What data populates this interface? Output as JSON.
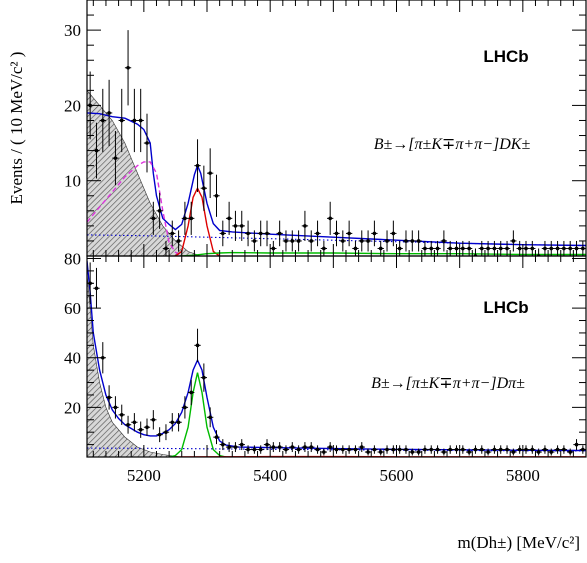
{
  "chart_data": [
    {
      "type": "scatter",
      "panel": "top",
      "experiment_label": "LHCb",
      "decay_label": "B±→[π±K∓π+π−]DK±",
      "ylabel": "Events / ( 10 MeV/c² )",
      "xlabel": "",
      "xlim": [
        5110,
        5900
      ],
      "ylim": [
        0,
        34
      ],
      "y_ticks": [
        10,
        20,
        30
      ],
      "x_ticks": [
        5200,
        5400,
        5600,
        5800
      ],
      "legend": "none",
      "grid": false,
      "data_points": {
        "x": [
          5115,
          5125,
          5135,
          5145,
          5155,
          5165,
          5175,
          5185,
          5195,
          5205,
          5215,
          5225,
          5235,
          5245,
          5255,
          5265,
          5275,
          5285,
          5295,
          5305,
          5315,
          5325,
          5335,
          5345,
          5355,
          5365,
          5375,
          5385,
          5395,
          5405,
          5415,
          5425,
          5435,
          5445,
          5455,
          5465,
          5475,
          5485,
          5495,
          5505,
          5515,
          5525,
          5535,
          5545,
          5555,
          5565,
          5575,
          5585,
          5595,
          5605,
          5615,
          5625,
          5635,
          5645,
          5655,
          5665,
          5675,
          5685,
          5695,
          5705,
          5715,
          5725,
          5735,
          5745,
          5755,
          5765,
          5775,
          5785,
          5795,
          5805,
          5815,
          5825,
          5835,
          5845,
          5855,
          5865,
          5875,
          5885,
          5895
        ],
        "y": [
          20,
          14,
          18,
          19,
          13,
          18,
          25,
          18,
          18,
          15,
          5,
          6,
          1,
          3,
          2,
          5,
          5,
          12,
          9,
          11,
          8,
          3,
          5,
          4,
          4,
          3,
          2,
          3,
          3,
          1,
          3,
          2,
          2,
          2,
          4,
          2,
          3,
          1,
          5,
          3,
          2,
          3,
          1,
          2,
          2,
          3,
          1,
          2,
          3,
          1,
          2,
          2,
          2,
          1,
          1,
          1,
          2,
          1,
          1,
          1,
          1,
          0,
          1,
          1,
          1,
          1,
          1,
          2,
          1,
          1,
          1,
          0,
          1,
          1,
          1,
          1,
          1,
          1,
          1
        ],
        "yerr": [
          4.5,
          3.7,
          4.2,
          4.4,
          3.6,
          4.2,
          5.0,
          4.2,
          4.2,
          3.9,
          2.2,
          2.4,
          1.0,
          1.7,
          1.4,
          2.2,
          2.2,
          3.5,
          3.0,
          3.3,
          2.8,
          1.7,
          2.2,
          2.0,
          2.0,
          1.7,
          1.4,
          1.7,
          1.7,
          1.0,
          1.7,
          1.4,
          1.4,
          1.4,
          2.0,
          1.4,
          1.7,
          1.0,
          2.2,
          1.7,
          1.4,
          1.7,
          1.0,
          1.4,
          1.4,
          1.7,
          1.0,
          1.4,
          1.7,
          1.0,
          1.4,
          1.4,
          1.4,
          1.0,
          1.0,
          1.0,
          1.4,
          1.0,
          1.0,
          1.0,
          1.0,
          1.0,
          1.0,
          1.0,
          1.0,
          1.0,
          1.0,
          1.4,
          1.0,
          1.0,
          1.0,
          1.0,
          1.0,
          1.0,
          1.0,
          1.0,
          1.0,
          1.0,
          1.0
        ]
      },
      "series": [
        {
          "color": "#0000cc",
          "style": "solid",
          "x": [
            5110,
            5130,
            5150,
            5170,
            5190,
            5200,
            5210,
            5215,
            5220,
            5230,
            5240,
            5250,
            5260,
            5270,
            5280,
            5285,
            5290,
            5300,
            5310,
            5320,
            5340,
            5400,
            5500,
            5600,
            5700,
            5800,
            5900
          ],
          "values": [
            19,
            18.9,
            18.5,
            18.3,
            17.5,
            16.8,
            15,
            11,
            8,
            5,
            4.2,
            3.5,
            4.2,
            7,
            10.8,
            12,
            11,
            7,
            4.3,
            3.4,
            3.2,
            2.9,
            2.5,
            2.1,
            1.7,
            1.5,
            1.4
          ]
        },
        {
          "color": "#dd33dd",
          "style": "dashed",
          "x": [
            5110,
            5130,
            5150,
            5170,
            5190,
            5200,
            5210,
            5220,
            5230,
            5240,
            5250,
            5260
          ],
          "values": [
            4.5,
            6.5,
            8.5,
            10.5,
            12,
            12.5,
            12.5,
            11,
            6,
            1.8,
            0.5,
            0
          ]
        },
        {
          "color": "#dd0000",
          "style": "solid",
          "x": [
            5250,
            5260,
            5270,
            5278,
            5285,
            5292,
            5300,
            5310,
            5320
          ],
          "values": [
            0,
            0.6,
            4,
            7.8,
            9,
            7.8,
            4,
            0.6,
            0
          ]
        },
        {
          "color": "#00bb00",
          "style": "solid",
          "x": [
            5260,
            5280,
            5300,
            5320,
            5340,
            5400,
            5500,
            5600,
            5700,
            5800,
            5900
          ],
          "values": [
            0,
            0.1,
            0.3,
            0.4,
            0.45,
            0.4,
            0.4,
            0.3,
            0.3,
            0.2,
            0.2
          ]
        },
        {
          "color": "#0000cc",
          "style": "dotted",
          "x": [
            5110,
            5200,
            5300,
            5400,
            5500,
            5600,
            5700,
            5800,
            5900
          ],
          "values": [
            2.8,
            2.7,
            2.5,
            2.3,
            2.1,
            1.9,
            1.7,
            1.5,
            1.4
          ]
        },
        {
          "color": "#888888",
          "style": "hatched-area",
          "x": [
            5110,
            5130,
            5150,
            5170,
            5190,
            5210,
            5230,
            5250,
            5270,
            5290
          ],
          "values": [
            22,
            20,
            18,
            15,
            11,
            7,
            4,
            2,
            0.6,
            0
          ]
        }
      ]
    },
    {
      "type": "scatter",
      "panel": "bottom",
      "experiment_label": "LHCb",
      "decay_label": "B±→[π±K∓π+π−]Dπ±",
      "ylabel": "",
      "xlabel": "m(Dh±) [MeV/c²]",
      "xlim": [
        5110,
        5900
      ],
      "ylim": [
        0,
        81
      ],
      "y_ticks": [
        20,
        40,
        60,
        80
      ],
      "x_ticks": [
        5200,
        5400,
        5600,
        5800
      ],
      "legend": "none",
      "grid": false,
      "data_points": {
        "x": [
          5115,
          5125,
          5135,
          5145,
          5155,
          5165,
          5175,
          5185,
          5195,
          5205,
          5215,
          5225,
          5235,
          5245,
          5255,
          5265,
          5275,
          5285,
          5295,
          5305,
          5315,
          5325,
          5335,
          5345,
          5355,
          5365,
          5375,
          5385,
          5395,
          5405,
          5415,
          5425,
          5435,
          5445,
          5455,
          5465,
          5475,
          5485,
          5495,
          5505,
          5515,
          5525,
          5535,
          5545,
          5555,
          5565,
          5575,
          5585,
          5595,
          5605,
          5615,
          5625,
          5635,
          5645,
          5655,
          5665,
          5675,
          5685,
          5695,
          5705,
          5715,
          5725,
          5735,
          5745,
          5755,
          5765,
          5775,
          5785,
          5795,
          5805,
          5815,
          5825,
          5835,
          5845,
          5855,
          5865,
          5875,
          5885,
          5895
        ],
        "y": [
          70,
          68,
          40,
          24,
          20,
          17,
          13,
          14,
          11,
          12,
          15,
          9,
          10,
          14,
          14,
          20,
          26,
          45,
          32,
          16,
          8,
          5,
          4,
          4,
          5,
          3,
          3,
          3,
          5,
          4,
          4,
          3,
          4,
          3,
          4,
          4,
          3,
          2,
          4,
          3,
          3,
          3,
          3,
          4,
          2,
          3,
          2,
          3,
          3,
          3,
          3,
          2,
          2,
          3,
          3,
          3,
          2,
          3,
          3,
          3,
          2,
          3,
          3,
          2,
          3,
          3,
          3,
          2,
          3,
          3,
          3,
          2,
          3,
          2,
          3,
          3,
          2,
          5,
          3
        ],
        "yerr": [
          8.4,
          8.2,
          6.3,
          4.9,
          4.5,
          4.1,
          3.6,
          3.7,
          3.3,
          3.5,
          3.9,
          3.0,
          3.2,
          3.7,
          3.7,
          4.5,
          5.1,
          6.7,
          5.7,
          4.0,
          2.8,
          2.2,
          2.0,
          2.0,
          2.2,
          1.7,
          1.7,
          1.7,
          2.2,
          2.0,
          2.0,
          1.7,
          2.0,
          1.7,
          2.0,
          2.0,
          1.7,
          1.4,
          2.0,
          1.7,
          1.7,
          1.7,
          1.7,
          2.0,
          1.4,
          1.7,
          1.4,
          1.7,
          1.7,
          1.7,
          1.7,
          1.4,
          1.4,
          1.7,
          1.7,
          1.7,
          1.4,
          1.7,
          1.7,
          1.7,
          1.4,
          1.7,
          1.7,
          1.4,
          1.7,
          1.7,
          1.7,
          1.4,
          1.7,
          1.7,
          1.7,
          1.4,
          1.7,
          1.4,
          1.7,
          1.7,
          1.4,
          2.2,
          1.7
        ]
      },
      "series": [
        {
          "color": "#0000cc",
          "style": "solid",
          "x": [
            5110,
            5115,
            5120,
            5130,
            5140,
            5150,
            5160,
            5170,
            5180,
            5190,
            5200,
            5210,
            5220,
            5230,
            5240,
            5250,
            5260,
            5270,
            5278,
            5285,
            5292,
            5300,
            5310,
            5320,
            5330,
            5350,
            5400,
            5500,
            5600,
            5700,
            5800,
            5900
          ],
          "values": [
            79,
            66,
            50,
            35,
            25,
            19,
            15.5,
            13,
            11.5,
            10,
            9,
            8.5,
            8.5,
            9.5,
            11,
            13.5,
            18,
            26,
            35,
            39,
            35,
            24,
            12,
            6.5,
            4.8,
            4,
            3.8,
            3.4,
            3.1,
            2.9,
            2.7,
            2.6
          ]
        },
        {
          "color": "#00bb00",
          "style": "solid",
          "x": [
            5240,
            5250,
            5260,
            5270,
            5278,
            5285,
            5292,
            5300,
            5310,
            5320,
            5330
          ],
          "values": [
            0,
            0.6,
            3,
            12,
            26,
            34,
            26,
            12,
            3,
            0.6,
            0
          ]
        },
        {
          "color": "#dd0000",
          "style": "solid",
          "x": [
            5250,
            5300,
            5400,
            5500,
            5600,
            5700,
            5800,
            5900
          ],
          "values": [
            0,
            0.1,
            0.15,
            0.15,
            0.1,
            0.1,
            0.1,
            0.1
          ]
        },
        {
          "color": "#0000cc",
          "style": "dotted",
          "x": [
            5110,
            5200,
            5300,
            5400,
            5500,
            5600,
            5700,
            5800,
            5900
          ],
          "values": [
            3.6,
            3.5,
            3.3,
            3.1,
            2.9,
            2.8,
            2.6,
            2.5,
            2.4
          ]
        },
        {
          "color": "#888888",
          "style": "hatched-area",
          "x": [
            5110,
            5115,
            5120,
            5130,
            5140,
            5150,
            5170,
            5190,
            5210,
            5230,
            5250,
            5260
          ],
          "values": [
            74,
            60,
            45,
            30,
            20,
            14,
            8,
            4,
            2,
            1,
            0.3,
            0
          ]
        }
      ]
    }
  ]
}
